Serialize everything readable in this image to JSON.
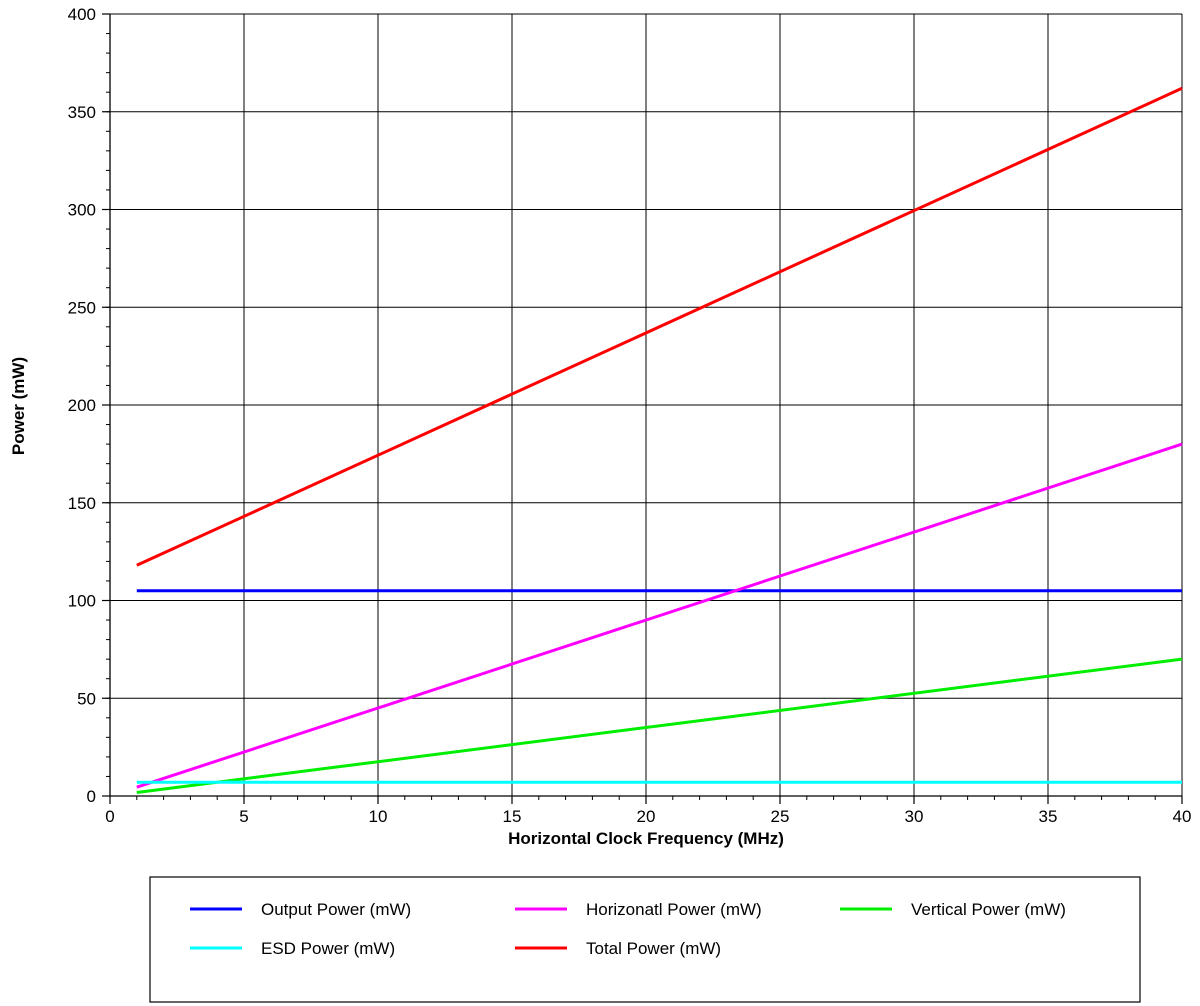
{
  "chart_data": {
    "type": "line",
    "title": "",
    "xlabel": "Horizontal Clock Frequency (MHz)",
    "ylabel": "Power (mW)",
    "xlim": [
      0,
      40
    ],
    "ylim": [
      0,
      400
    ],
    "xticks": [
      0,
      5,
      10,
      15,
      20,
      25,
      30,
      35,
      40
    ],
    "yticks": [
      0,
      50,
      100,
      150,
      200,
      250,
      300,
      350,
      400
    ],
    "x_minor_step": 1,
    "y_minor_step": 10,
    "grid": true,
    "legend_position": "bottom",
    "series": [
      {
        "name": "Output Power (mW)",
        "color": "#0000ff",
        "x": [
          1,
          40
        ],
        "y": [
          105,
          105
        ]
      },
      {
        "name": "Horizonatl Power (mW)",
        "color": "#ff00ff",
        "x": [
          1,
          40
        ],
        "y": [
          4.5,
          180
        ]
      },
      {
        "name": "Vertical Power (mW)",
        "color": "#00ee00",
        "x": [
          1,
          40
        ],
        "y": [
          1.8,
          70
        ]
      },
      {
        "name": "ESD Power (mW)",
        "color": "#00ffff",
        "x": [
          1,
          40
        ],
        "y": [
          7,
          7
        ]
      },
      {
        "name": "Total Power (mW)",
        "color": "#ff0000",
        "x": [
          1,
          40
        ],
        "y": [
          118,
          362
        ]
      }
    ]
  }
}
